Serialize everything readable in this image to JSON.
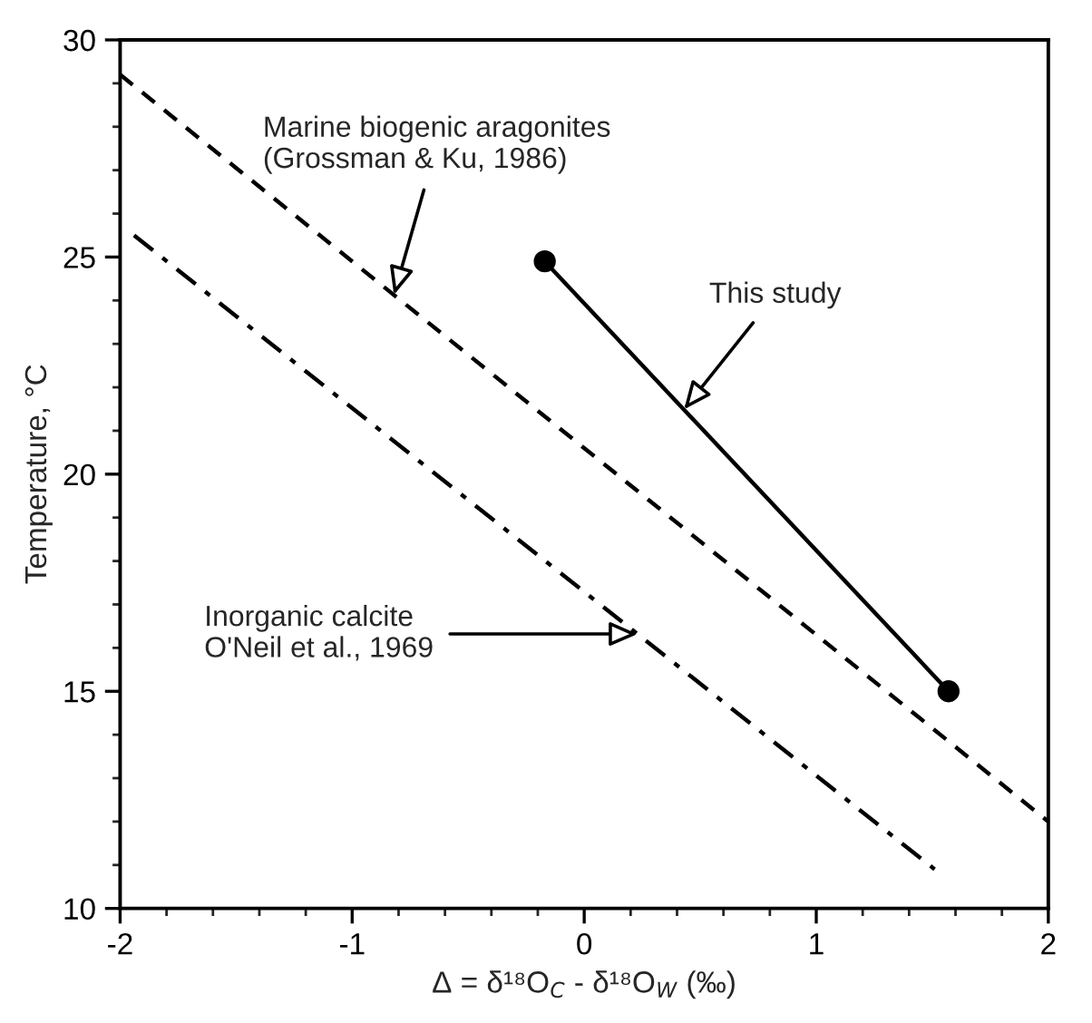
{
  "chart_data": {
    "type": "line",
    "xlabel": "Δ = δ¹⁸O$_{C}$ - δ¹⁸O$_{W}$ (‰)",
    "ylabel": "Temperature, °C",
    "xlim": [
      -2,
      2
    ],
    "ylim": [
      10,
      30
    ],
    "xticks": [
      -2,
      -1,
      0,
      1,
      2
    ],
    "yticks": [
      10,
      15,
      20,
      25,
      30
    ],
    "series": [
      {
        "color": "#000000",
        "x": [
          -2,
          2
        ],
        "values": [
          29.2,
          12.0
        ],
        "line_style": "dashed",
        "marker": "none"
      },
      {
        "color": "#000000",
        "x": [
          -1.94,
          1.51
        ],
        "values": [
          25.5,
          10.9
        ],
        "line_style": "dashdot",
        "marker": "none"
      },
      {
        "color": "#000000",
        "x": [
          -0.17,
          1.57
        ],
        "values": [
          24.9,
          15.0
        ],
        "line_style": "solid",
        "marker": "circle"
      }
    ],
    "annotations": [
      {
        "text": "Marine biogenic aragonites\n(Grossman & Ku, 1986)",
        "x": -0.82,
        "y": 24.13
      },
      {
        "text": "This study",
        "x": 0.43,
        "y": 21.49
      },
      {
        "text": "Inorganic calcite\nO'Neil et al., 1969",
        "x": 0.23,
        "y": 16.32
      }
    ],
    "grid": false,
    "legend": false
  }
}
